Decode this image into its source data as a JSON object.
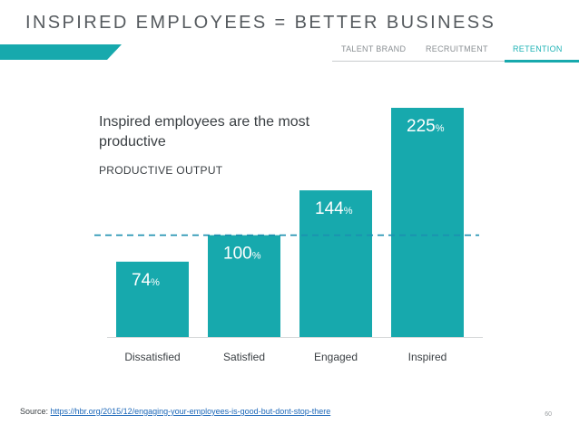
{
  "header": {
    "title": "INSPIRED EMPLOYEES = BETTER BUSINESS",
    "tabs": [
      {
        "label": "TALENT BRAND",
        "active": false
      },
      {
        "label": "RECRUITMENT",
        "active": false
      },
      {
        "label": "RETENTION",
        "active": true
      }
    ]
  },
  "colors": {
    "accent": "#17a9ad",
    "bar": "#17a9ad",
    "reference_line": "#1b8fb0",
    "text": "#3a3f43"
  },
  "chart_data": {
    "type": "bar",
    "title": "Inspired employees are the most productive",
    "ylabel": "PRODUCTIVE OUTPUT",
    "xlabel": "",
    "categories": [
      "Dissatisfied",
      "Satisfied",
      "Engaged",
      "Inspired"
    ],
    "values": [
      74,
      100,
      144,
      225
    ],
    "value_labels": [
      "74",
      "100",
      "144",
      "225"
    ],
    "unit": "%",
    "reference_line": 100,
    "ylim": [
      0,
      225
    ],
    "grid": false,
    "legend": "none"
  },
  "footer": {
    "source_label": "Source:",
    "source_url": "https://hbr.org/2015/12/engaging-your-employees-is-good-but-dont-stop-there",
    "page_number": "60"
  }
}
